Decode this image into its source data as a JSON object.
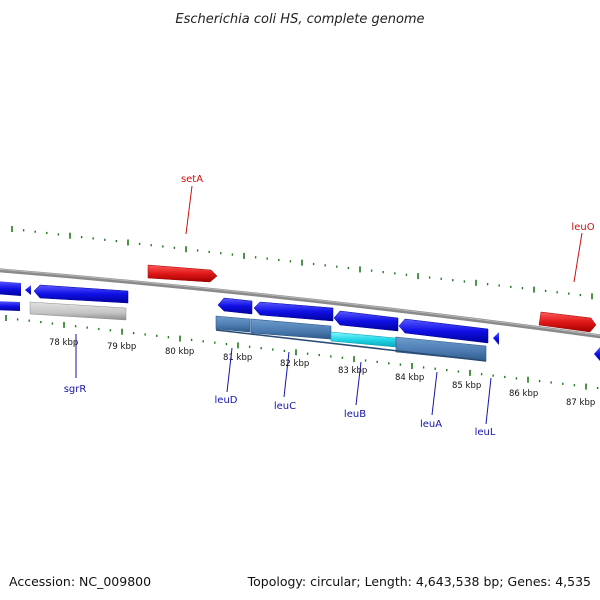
{
  "title": "Escherichia coli HS, complete genome",
  "footer": {
    "accession": "Accession: NC_009800",
    "summary": "Topology: circular; Length: 4,643,538 bp; Genes: 4,535"
  },
  "colors": {
    "forward_gene": "#e01818",
    "reverse_gene": "#1010e6",
    "pseudo_gene": "#c4c4c4",
    "operon_bar": "#4a7ab0",
    "highlight_bar": "#22d8e8",
    "backbone": "#8a8a8a",
    "tick": "#1f7a1f",
    "forward_label": "#cc1111",
    "reverse_label": "#1414aa"
  },
  "genes": [
    {
      "name": "setA",
      "strand": "forward",
      "start_kbp": 80.4,
      "end_kbp": 81.3,
      "label_kbp": 80.8
    },
    {
      "name": "leuO",
      "strand": "forward",
      "start_kbp": 87.05,
      "end_kbp": 87.95,
      "label_kbp": 87.3
    },
    {
      "name": "sgrR",
      "strand": "reverse",
      "start_kbp": 77.6,
      "end_kbp": 79.3,
      "label_kbp": 78.4
    },
    {
      "name": "leuD",
      "strand": "reverse",
      "start_kbp": 81.0,
      "end_kbp": 81.4,
      "label_kbp": 81.1
    },
    {
      "name": "leuC",
      "strand": "reverse",
      "start_kbp": 81.4,
      "end_kbp": 82.85,
      "label_kbp": 82.1
    },
    {
      "name": "leuB",
      "strand": "reverse",
      "start_kbp": 82.85,
      "end_kbp": 83.95,
      "label_kbp": 83.3
    },
    {
      "name": "leuA",
      "strand": "reverse",
      "start_kbp": 83.95,
      "end_kbp": 85.55,
      "label_kbp": 84.5
    },
    {
      "name": "leuL",
      "strand": "reverse",
      "start_kbp": 85.6,
      "end_kbp": 85.7,
      "label_kbp": 85.65
    }
  ],
  "scale": {
    "labels": [
      "78 kbp",
      "79 kbp",
      "80 kbp",
      "81 kbp",
      "82 kbp",
      "83 kbp",
      "84 kbp",
      "85 kbp",
      "86 kbp",
      "87 kbp"
    ]
  }
}
